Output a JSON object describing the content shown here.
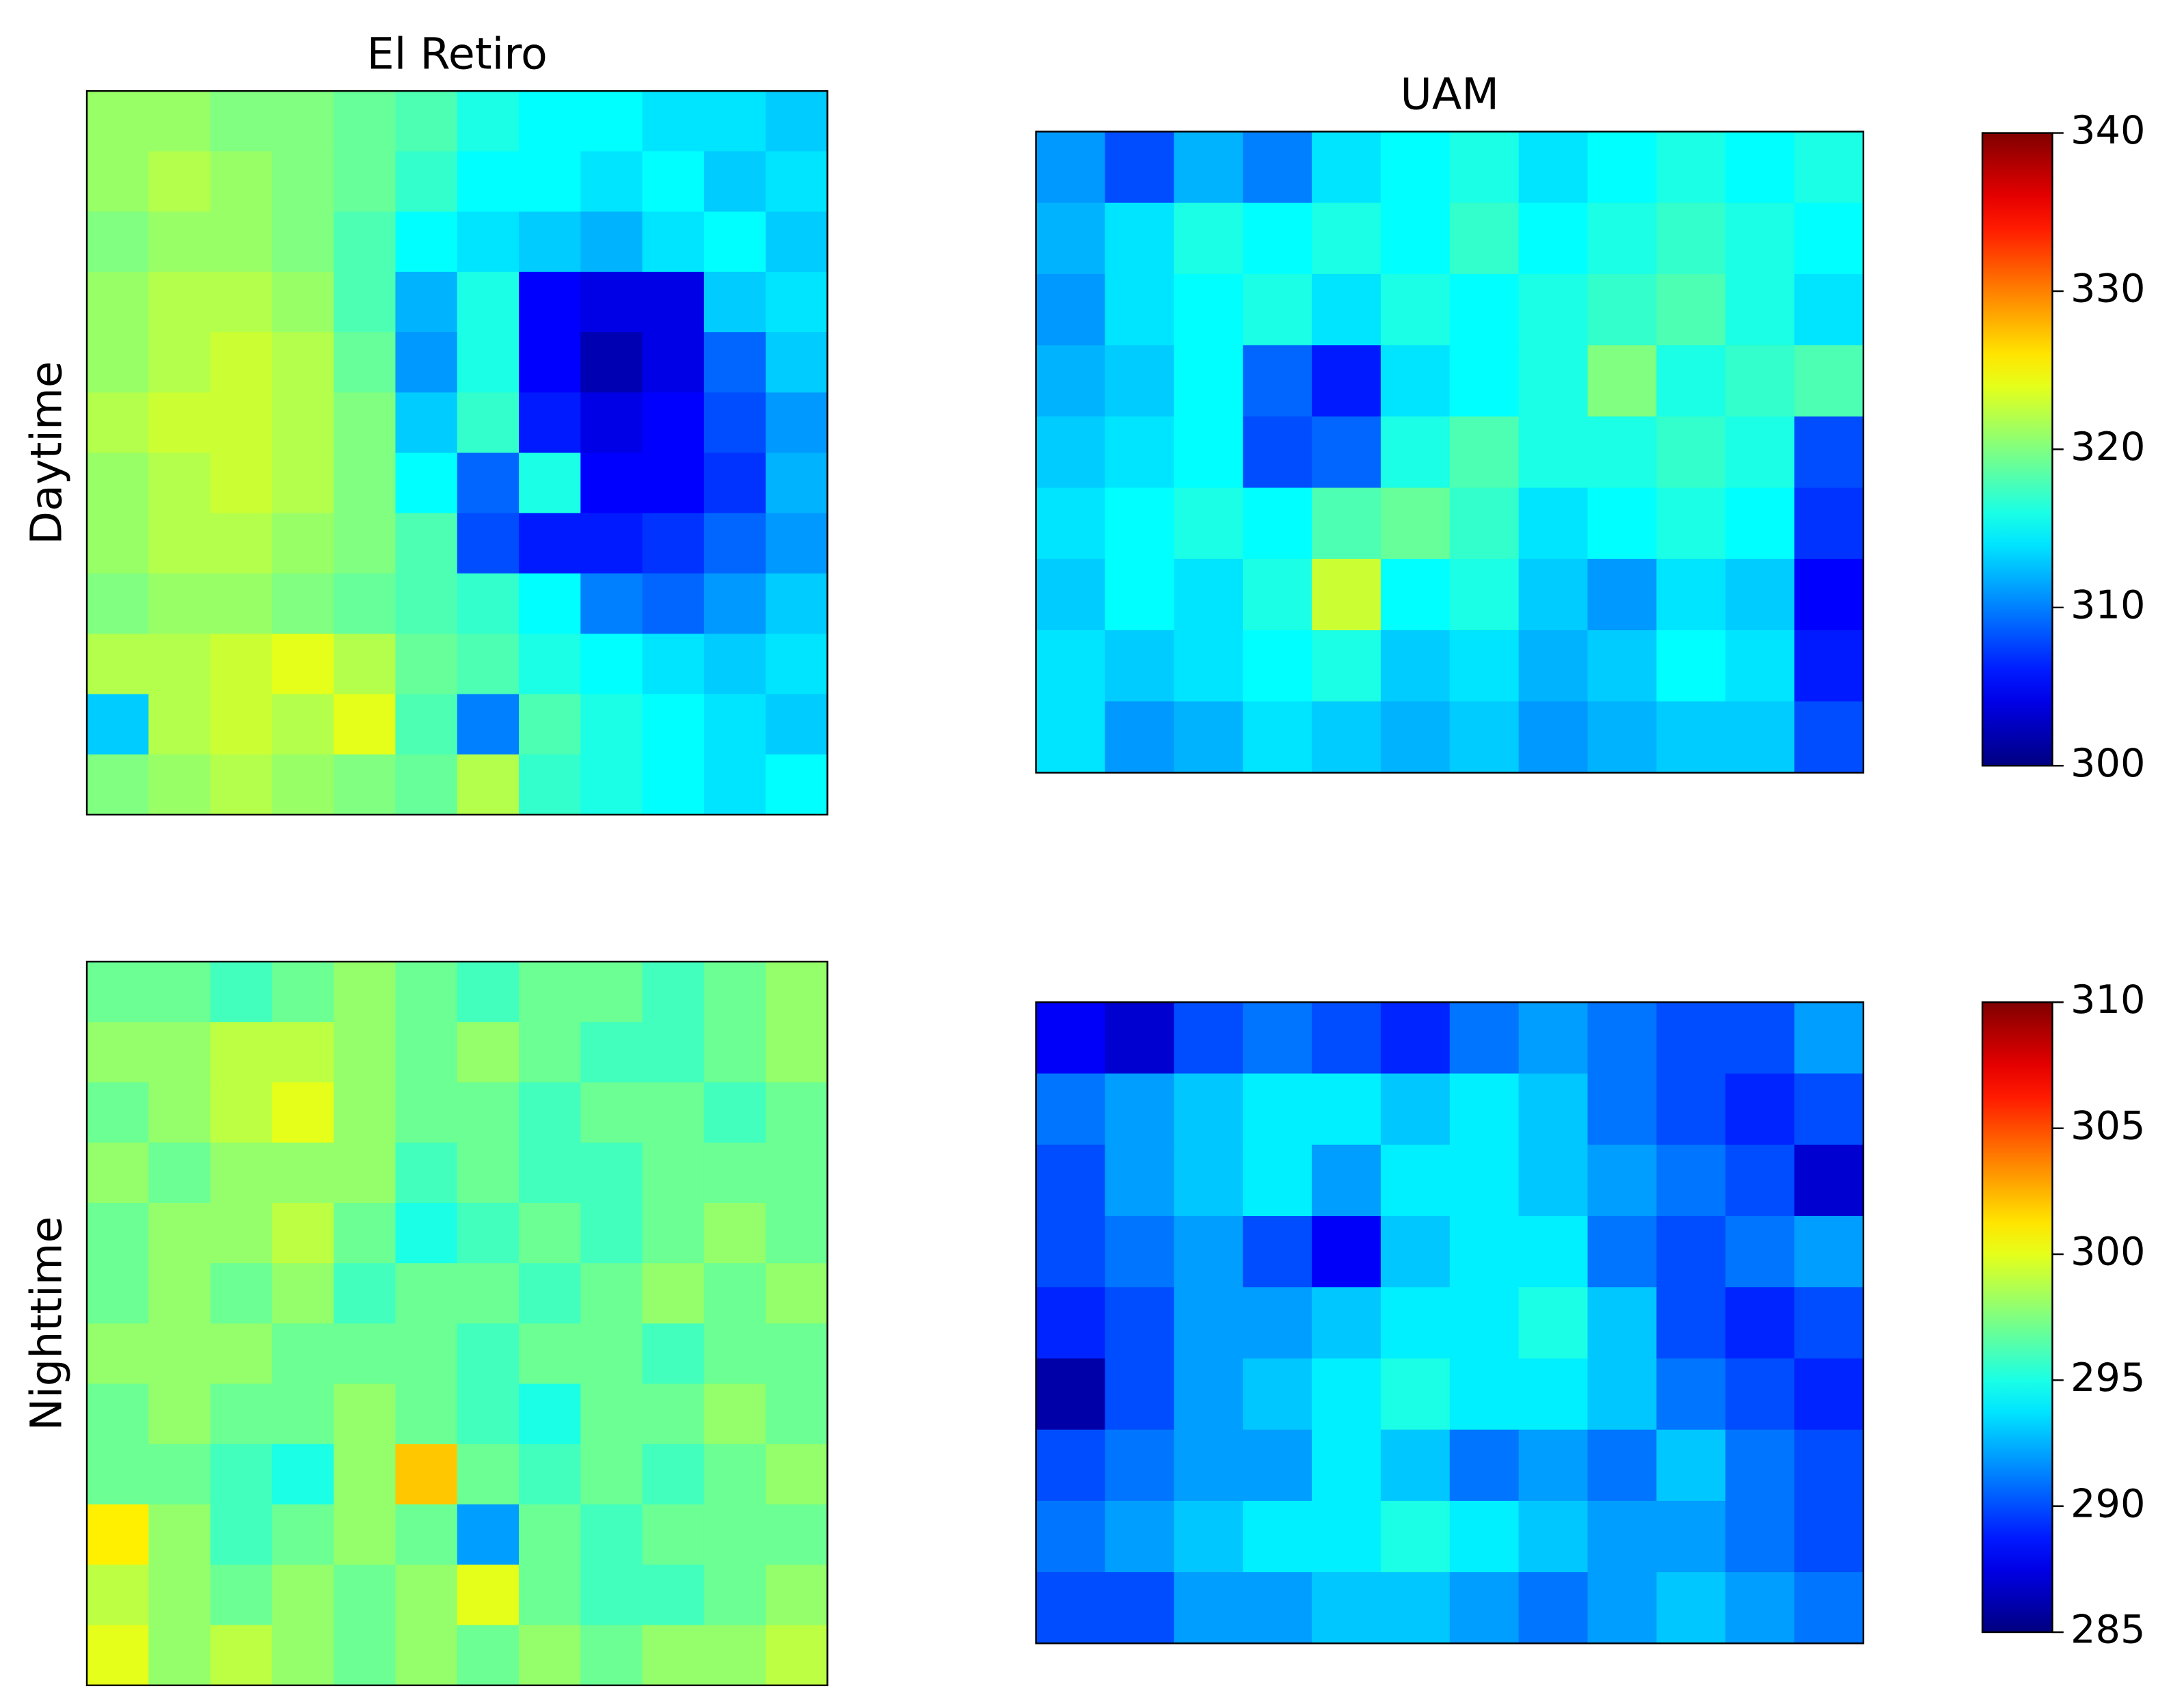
{
  "chart_data": [
    {
      "type": "heatmap",
      "title": "El Retiro",
      "ylabel": "Daytime",
      "colormap": "jet",
      "clim": [
        300,
        340
      ],
      "values": [
        [
          321,
          321,
          320,
          320,
          319,
          318,
          316,
          315,
          315,
          314,
          314,
          313
        ],
        [
          321,
          322,
          321,
          320,
          319,
          317,
          315,
          315,
          314,
          315,
          313,
          314
        ],
        [
          320,
          321,
          321,
          320,
          318,
          315,
          314,
          313,
          312,
          314,
          315,
          313
        ],
        [
          321,
          322,
          322,
          321,
          318,
          312,
          316,
          305,
          304,
          304,
          313,
          314
        ],
        [
          321,
          322,
          323,
          322,
          319,
          311,
          316,
          305,
          302,
          304,
          309,
          313
        ],
        [
          322,
          323,
          323,
          322,
          320,
          313,
          317,
          306,
          304,
          305,
          308,
          311
        ],
        [
          321,
          322,
          323,
          322,
          320,
          315,
          309,
          316,
          305,
          305,
          307,
          312
        ],
        [
          321,
          322,
          322,
          321,
          320,
          318,
          308,
          306,
          306,
          307,
          309,
          311
        ],
        [
          320,
          321,
          321,
          320,
          319,
          318,
          317,
          315,
          310,
          309,
          311,
          313
        ],
        [
          322,
          322,
          323,
          324,
          322,
          319,
          318,
          316,
          315,
          314,
          313,
          314
        ],
        [
          313,
          322,
          323,
          322,
          324,
          318,
          310,
          318,
          316,
          315,
          314,
          313
        ],
        [
          320,
          321,
          322,
          321,
          320,
          319,
          322,
          317,
          316,
          315,
          314,
          315
        ]
      ]
    },
    {
      "type": "heatmap",
      "title": "UAM",
      "colormap": "jet",
      "clim": [
        300,
        340
      ],
      "colorbar_ticks": [
        300,
        310,
        320,
        330,
        340
      ],
      "values": [
        [
          311,
          308,
          312,
          310,
          314,
          315,
          316,
          314,
          315,
          316,
          315,
          316
        ],
        [
          312,
          314,
          316,
          315,
          316,
          315,
          317,
          315,
          316,
          317,
          316,
          315
        ],
        [
          311,
          314,
          315,
          316,
          314,
          316,
          315,
          316,
          317,
          318,
          316,
          314
        ],
        [
          312,
          313,
          315,
          309,
          306,
          314,
          315,
          316,
          320,
          316,
          317,
          318
        ],
        [
          313,
          314,
          315,
          308,
          309,
          316,
          318,
          316,
          316,
          317,
          316,
          308
        ],
        [
          314,
          315,
          316,
          315,
          318,
          319,
          317,
          314,
          315,
          316,
          315,
          307
        ],
        [
          313,
          315,
          314,
          316,
          323,
          315,
          316,
          313,
          311,
          314,
          313,
          305
        ],
        [
          314,
          313,
          314,
          315,
          316,
          313,
          314,
          312,
          313,
          315,
          314,
          306
        ],
        [
          314,
          311,
          312,
          314,
          313,
          312,
          313,
          311,
          312,
          313,
          313,
          308
        ]
      ]
    },
    {
      "type": "heatmap",
      "ylabel": "Nighttime",
      "colormap": "jet",
      "clim": [
        285,
        310
      ],
      "values": [
        [
          297,
          297,
          296,
          297,
          298,
          297,
          296,
          297,
          297,
          296,
          297,
          298
        ],
        [
          298,
          298,
          299,
          299,
          298,
          297,
          298,
          297,
          296,
          296,
          297,
          298
        ],
        [
          297,
          298,
          299,
          300,
          298,
          297,
          297,
          296,
          297,
          297,
          296,
          297
        ],
        [
          298,
          297,
          298,
          298,
          298,
          296,
          297,
          296,
          296,
          297,
          297,
          297
        ],
        [
          297,
          298,
          298,
          299,
          297,
          295,
          296,
          297,
          296,
          297,
          298,
          297
        ],
        [
          297,
          298,
          297,
          298,
          296,
          297,
          297,
          296,
          297,
          298,
          297,
          298
        ],
        [
          298,
          298,
          298,
          297,
          297,
          297,
          296,
          297,
          297,
          296,
          297,
          297
        ],
        [
          297,
          298,
          297,
          297,
          298,
          297,
          296,
          295,
          297,
          297,
          298,
          297
        ],
        [
          297,
          297,
          296,
          295,
          298,
          302,
          297,
          296,
          297,
          296,
          297,
          298
        ],
        [
          301,
          298,
          296,
          297,
          298,
          297,
          292,
          297,
          296,
          297,
          297,
          297
        ],
        [
          299,
          298,
          297,
          298,
          297,
          298,
          300,
          297,
          296,
          296,
          297,
          298
        ],
        [
          300,
          298,
          299,
          298,
          297,
          298,
          297,
          298,
          297,
          298,
          298,
          299
        ]
      ]
    },
    {
      "type": "heatmap",
      "colormap": "jet",
      "clim": [
        285,
        310
      ],
      "colorbar_ticks": [
        285,
        290,
        295,
        300,
        305,
        310
      ],
      "values": [
        [
          288,
          287,
          290,
          291,
          290,
          289,
          291,
          292,
          291,
          290,
          290,
          292
        ],
        [
          291,
          292,
          293,
          294,
          294,
          293,
          294,
          293,
          291,
          290,
          289,
          290
        ],
        [
          290,
          292,
          293,
          294,
          292,
          294,
          294,
          293,
          292,
          291,
          290,
          287
        ],
        [
          290,
          291,
          292,
          290,
          288,
          293,
          294,
          294,
          291,
          290,
          291,
          292
        ],
        [
          289,
          290,
          292,
          292,
          293,
          294,
          294,
          295,
          293,
          290,
          289,
          290
        ],
        [
          286,
          290,
          292,
          293,
          294,
          295,
          294,
          294,
          293,
          291,
          290,
          289
        ],
        [
          290,
          291,
          292,
          292,
          294,
          293,
          291,
          292,
          291,
          293,
          291,
          290
        ],
        [
          291,
          292,
          293,
          294,
          294,
          295,
          294,
          293,
          292,
          292,
          291,
          290
        ],
        [
          290,
          290,
          292,
          292,
          293,
          293,
          292,
          291,
          292,
          293,
          292,
          291
        ]
      ]
    }
  ]
}
